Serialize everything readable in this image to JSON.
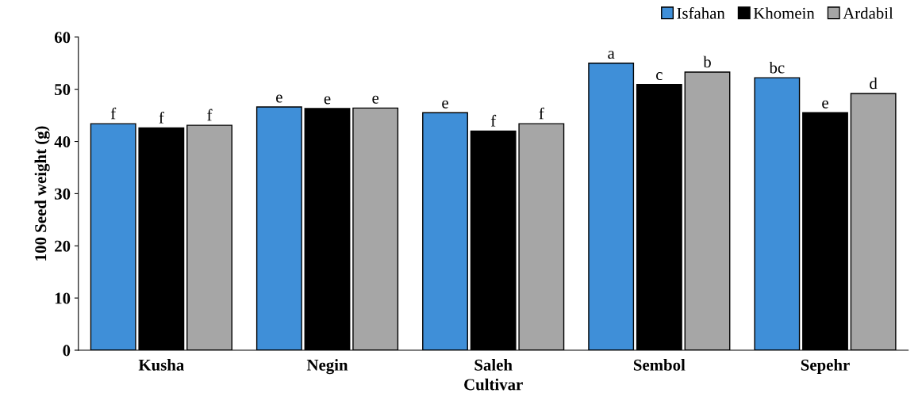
{
  "chart_data": {
    "type": "bar",
    "xlabel": "Cultivar",
    "ylabel": "100 Seed weight (g)",
    "categories": [
      "Kusha",
      "Negin",
      "Saleh",
      "Sembol",
      "Sepehr"
    ],
    "series": [
      {
        "name": "Isfahan",
        "color": "#3f8fd8",
        "values": [
          43.4,
          46.6,
          45.5,
          55.0,
          52.2
        ],
        "value_labels": [
          "f",
          "e",
          "e",
          "a",
          "bc"
        ]
      },
      {
        "name": "Khomein",
        "color": "#000000",
        "values": [
          42.6,
          46.3,
          42.0,
          50.9,
          45.5
        ],
        "value_labels": [
          "f",
          "e",
          "f",
          "c",
          "e"
        ]
      },
      {
        "name": "Ardabil",
        "color": "#a6a6a6",
        "values": [
          43.1,
          46.4,
          43.4,
          53.3,
          49.2
        ],
        "value_labels": [
          "f",
          "e",
          "f",
          "b",
          "d"
        ]
      }
    ],
    "ylim": [
      0,
      60
    ],
    "yticks": [
      0,
      10,
      20,
      30,
      40,
      50,
      60
    ],
    "grid": false,
    "legend": "top right"
  }
}
